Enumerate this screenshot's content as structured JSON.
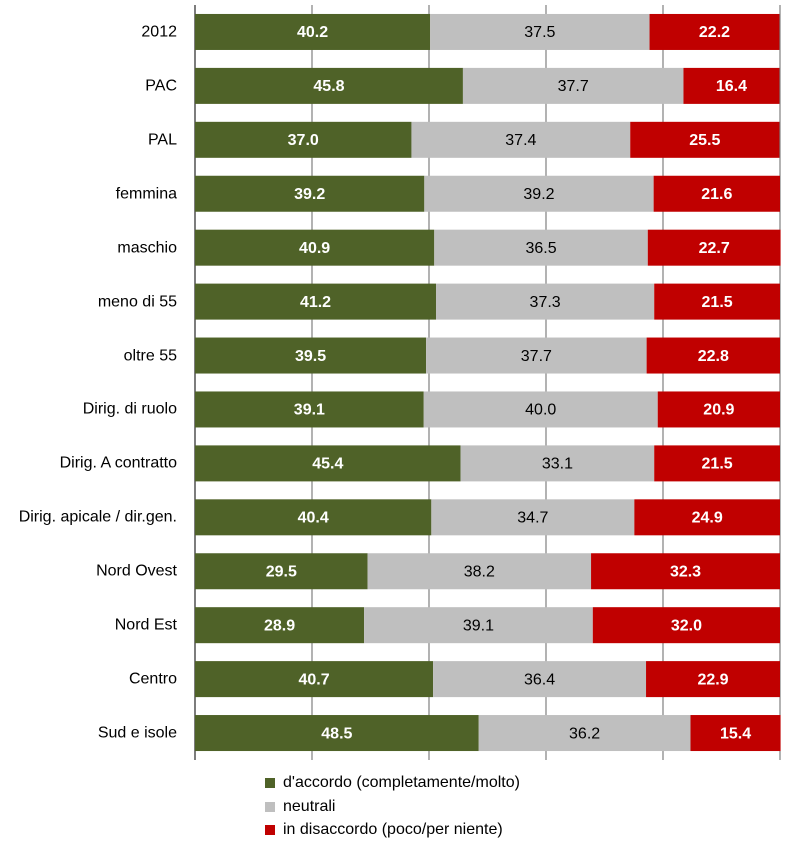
{
  "chart_data": {
    "type": "stacked-bar-horizontal",
    "categories": [
      "2012",
      "PAC",
      "PAL",
      "femmina",
      "maschio",
      "meno di 55",
      "oltre 55",
      "Dirig. di ruolo",
      "Dirig. A contratto",
      "Dirig. apicale / dir.gen.",
      "Nord Ovest",
      "Nord Est",
      "Centro",
      "Sud e isole"
    ],
    "series": [
      {
        "name": "d'accordo (completamente/molto)",
        "color": "#4f6228",
        "values": [
          40.2,
          45.8,
          37.0,
          39.2,
          40.9,
          41.2,
          39.5,
          39.1,
          45.4,
          40.4,
          29.5,
          28.9,
          40.7,
          48.5
        ],
        "value_labels": [
          "40.2",
          "45.8",
          "37.0",
          "39.2",
          "40.9",
          "41.2",
          "39.5",
          "39.1",
          "45.4",
          "40.4",
          "29.5",
          "28.9",
          "40.7",
          "48.5"
        ]
      },
      {
        "name": "neutrali",
        "color": "#bfbfbf",
        "values": [
          37.5,
          37.7,
          37.4,
          39.2,
          36.5,
          37.3,
          37.7,
          40.0,
          33.1,
          34.7,
          38.2,
          39.1,
          36.4,
          36.2
        ],
        "value_labels": [
          "37.5",
          "37.7",
          "37.4",
          "39.2",
          "36.5",
          "37.3",
          "37.7",
          "40.0",
          "33.1",
          "34.7",
          "38.2",
          "39.1",
          "36.4",
          "36.2"
        ]
      },
      {
        "name": "in disaccordo (poco/per niente)",
        "color": "#c00000",
        "values": [
          22.2,
          16.4,
          25.5,
          21.6,
          22.7,
          21.5,
          22.8,
          20.9,
          21.5,
          24.9,
          32.3,
          32.0,
          22.9,
          15.4
        ],
        "value_labels": [
          "22.2",
          "16.4",
          "25.5",
          "21.6",
          "22.7",
          "21.5",
          "22.8",
          "20.9",
          "21.5",
          "24.9",
          "32.3",
          "32.0",
          "22.9",
          "15.4"
        ]
      }
    ],
    "xlim": [
      0,
      100
    ],
    "xticks": [
      0,
      20,
      40,
      60,
      80,
      100
    ],
    "grid": true
  }
}
